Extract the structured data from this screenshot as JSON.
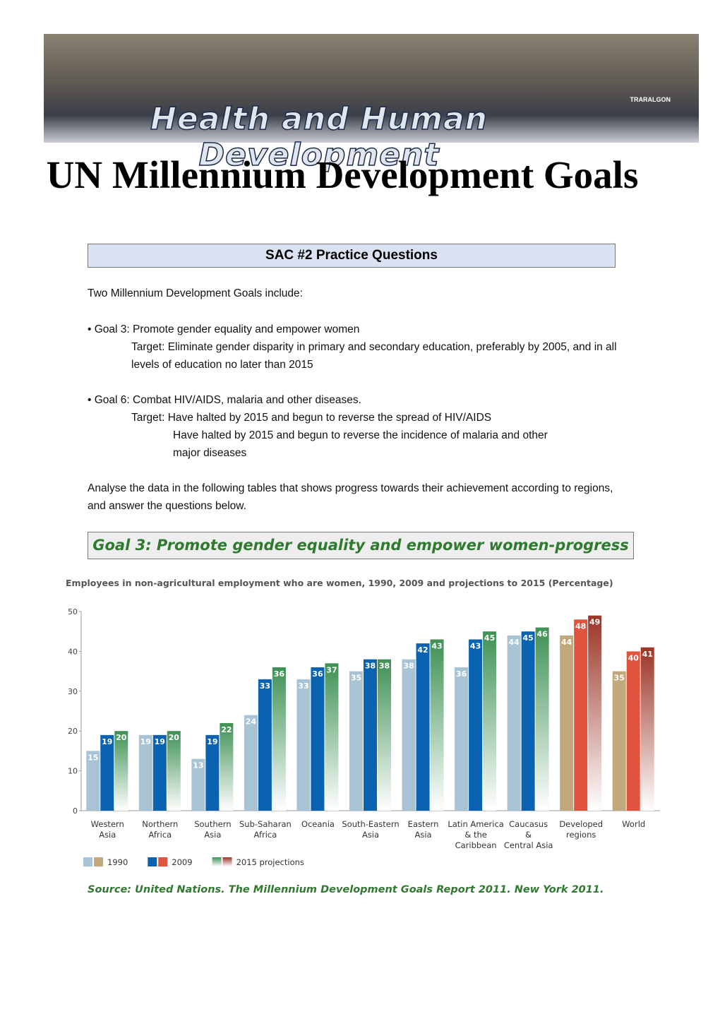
{
  "banner": {
    "title": "Health and Human Development",
    "logo": "TRARALGON"
  },
  "title": "UN Millennium Development Goals",
  "subtitle": "SAC #2 Practice Questions",
  "intro": "Two Millennium Development Goals include:",
  "goals": [
    {
      "text": "Goal 3: Promote gender equality and empower women",
      "target_label": "Target:",
      "targets": [
        "Eliminate gender disparity in primary and secondary education, preferably by 2005, and in all levels of education no later than 2015"
      ]
    },
    {
      "text": "Goal 6: Combat HIV/AIDS, malaria and other diseases.",
      "target_label": "Target:",
      "targets": [
        "Have halted by 2015 and begun to reverse the spread of HIV/AIDS",
        "Have halted by 2015 and begun to reverse the incidence of malaria and other major diseases"
      ]
    }
  ],
  "instructions": "Analyse the data in the following tables that shows progress towards their achievement according to regions, and answer the questions below.",
  "section_heading": "Goal 3: Promote gender equality and empower women-progress",
  "chart_data": {
    "type": "bar",
    "title": "Employees in non-agricultural employment who are women, 1990, 2009 and projections to 2015 (Percentage)",
    "categories": [
      "Western\nAsia",
      "Northern\nAfrica",
      "Southern\nAsia",
      "Sub-Saharan\nAfrica",
      "Oceania",
      "South-Eastern\nAsia",
      "Eastern\nAsia",
      "Latin America\n& the\nCaribbean",
      "Caucasus\n&\nCentral Asia",
      "Developed\nregions",
      "World"
    ],
    "series": [
      {
        "name": "1990",
        "values": [
          15,
          19,
          13,
          24,
          33,
          35,
          38,
          36,
          44,
          44,
          35
        ],
        "colors": [
          "#a8c3d3",
          "#a8c3d3",
          "#a8c3d3",
          "#a8c3d3",
          "#a8c3d3",
          "#a8c3d3",
          "#a8c3d3",
          "#a8c3d3",
          "#a8c3d3",
          "#c2a97c",
          "#c2a97c"
        ]
      },
      {
        "name": "2009",
        "values": [
          19,
          19,
          19,
          33,
          36,
          38,
          42,
          43,
          45,
          48,
          40
        ],
        "colors": [
          "#0a63b0",
          "#0a63b0",
          "#0a63b0",
          "#0a63b0",
          "#0a63b0",
          "#0a63b0",
          "#0a63b0",
          "#0a63b0",
          "#0a63b0",
          "#e0533f",
          "#e0533f"
        ]
      },
      {
        "name": "2015 projections",
        "values": [
          20,
          20,
          22,
          36,
          37,
          38,
          43,
          45,
          46,
          49,
          41
        ],
        "colors": [
          "#3e9155",
          "#3e9155",
          "#3e9155",
          "#3e9155",
          "#3e9155",
          "#3e9155",
          "#3e9155",
          "#3e9155",
          "#3e9155",
          "#9b3426",
          "#9b3426"
        ]
      }
    ],
    "ylim": [
      0,
      50
    ],
    "yticks": [
      0,
      10,
      20,
      30,
      40,
      50
    ],
    "grid": false
  },
  "source": "Source: United Nations. The Millennium Development Goals Report 2011. New York 2011."
}
